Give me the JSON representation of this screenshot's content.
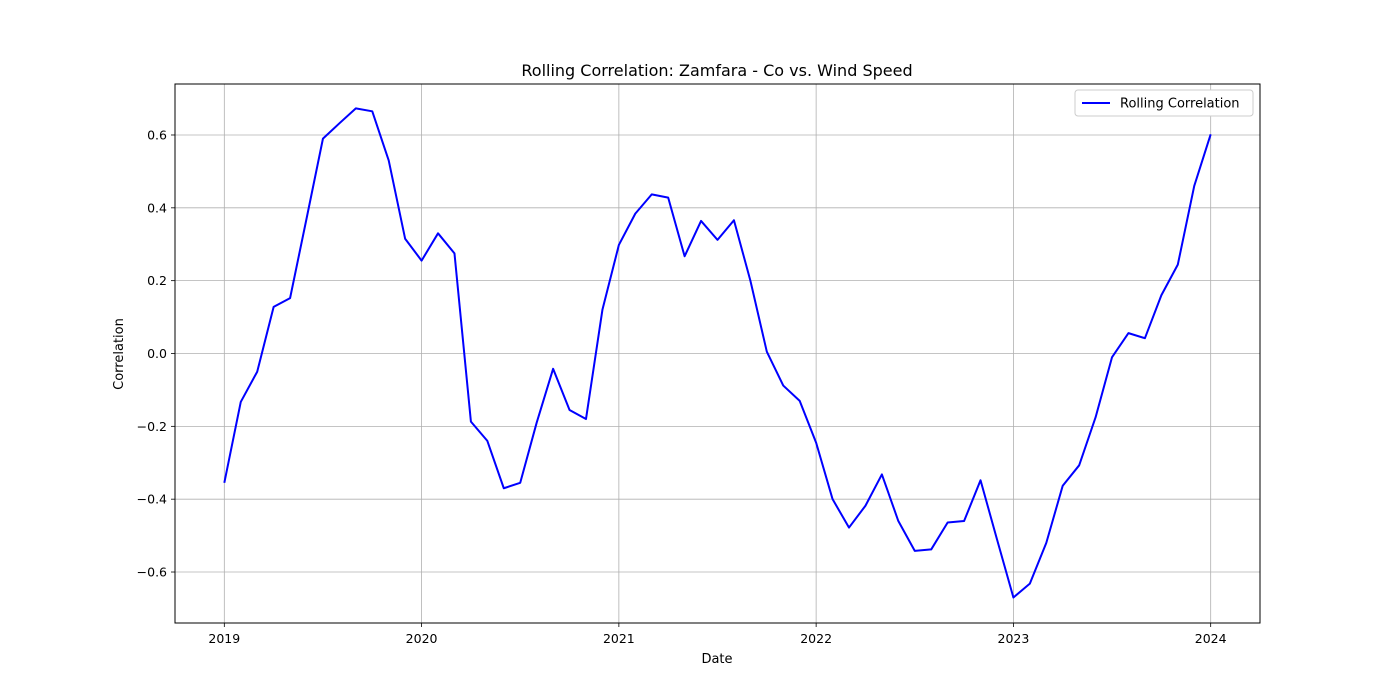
{
  "chart_data": {
    "type": "line",
    "title": "Rolling Correlation: Zamfara - Co vs. Wind Speed",
    "xlabel": "Date",
    "ylabel": "Correlation",
    "xlim": [
      2018.75,
      2024.25
    ],
    "ylim": [
      -0.74,
      0.74
    ],
    "x_ticks": [
      {
        "value": 2019,
        "label": "2019"
      },
      {
        "value": 2020,
        "label": "2020"
      },
      {
        "value": 2021,
        "label": "2021"
      },
      {
        "value": 2022,
        "label": "2022"
      },
      {
        "value": 2023,
        "label": "2023"
      },
      {
        "value": 2024,
        "label": "2024"
      }
    ],
    "y_ticks": [
      {
        "value": -0.6,
        "label": "−0.6"
      },
      {
        "value": -0.4,
        "label": "−0.4"
      },
      {
        "value": -0.2,
        "label": "−0.2"
      },
      {
        "value": 0.0,
        "label": "0.0"
      },
      {
        "value": 0.2,
        "label": "0.2"
      },
      {
        "value": 0.4,
        "label": "0.4"
      },
      {
        "value": 0.6,
        "label": "0.6"
      }
    ],
    "grid": true,
    "legend_position": "top-right",
    "series": [
      {
        "name": "Rolling Correlation",
        "color": "#0000ff",
        "x": [
          "2019-01",
          "2019-02",
          "2019-03",
          "2019-04",
          "2019-05",
          "2019-06",
          "2019-07",
          "2019-08",
          "2019-09",
          "2019-10",
          "2019-11",
          "2019-12",
          "2020-01",
          "2020-02",
          "2020-03",
          "2020-04",
          "2020-05",
          "2020-06",
          "2020-07",
          "2020-08",
          "2020-09",
          "2020-10",
          "2020-11",
          "2020-12",
          "2021-01",
          "2021-02",
          "2021-03",
          "2021-04",
          "2021-05",
          "2021-06",
          "2021-07",
          "2021-08",
          "2021-09",
          "2021-10",
          "2021-11",
          "2021-12",
          "2022-01",
          "2022-02",
          "2022-03",
          "2022-04",
          "2022-05",
          "2022-06",
          "2022-07",
          "2022-08",
          "2022-09",
          "2022-10",
          "2022-11",
          "2022-12",
          "2023-01",
          "2023-02",
          "2023-03",
          "2023-04",
          "2023-05",
          "2023-06",
          "2023-07",
          "2023-08",
          "2023-09",
          "2023-10",
          "2023-11",
          "2023-12",
          "2024-01"
        ],
        "y": [
          -0.355,
          -0.133,
          -0.05,
          0.128,
          0.152,
          0.37,
          0.59,
          0.632,
          0.673,
          0.665,
          0.53,
          0.315,
          0.255,
          0.33,
          0.275,
          -0.187,
          -0.24,
          -0.37,
          -0.355,
          -0.19,
          -0.042,
          -0.155,
          -0.18,
          0.12,
          0.298,
          0.384,
          0.437,
          0.428,
          0.267,
          0.364,
          0.312,
          0.366,
          0.2,
          0.005,
          -0.088,
          -0.13,
          -0.245,
          -0.4,
          -0.478,
          -0.418,
          -0.332,
          -0.46,
          -0.542,
          -0.538,
          -0.464,
          -0.46,
          -0.348,
          -0.51,
          -0.67,
          -0.632,
          -0.52,
          -0.363,
          -0.307,
          -0.175,
          -0.01,
          0.056,
          0.042,
          0.16,
          0.244,
          0.46,
          0.602
        ]
      }
    ]
  }
}
